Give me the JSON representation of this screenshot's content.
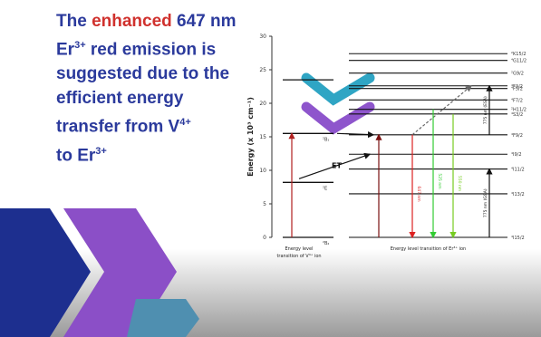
{
  "slide": {
    "headline": {
      "lines": [
        [
          {
            "text": "The "
          },
          {
            "text": "enhanced",
            "highlight": true
          },
          {
            "text": " 647 nm"
          }
        ],
        [
          {
            "text": "Er"
          },
          {
            "text": "3+",
            "sup": true
          },
          {
            "text": " red emission is"
          }
        ],
        [
          {
            "text": "suggested due to the"
          }
        ],
        [
          {
            "text": "efficient energy"
          }
        ],
        [
          {
            "text": "transfer from V"
          },
          {
            "text": "4+",
            "sup": true
          }
        ],
        [
          {
            "text": "to Er"
          },
          {
            "text": "3+",
            "sup": true
          }
        ]
      ]
    },
    "diagram": {
      "y_label": "Energy (x 10³ cm⁻¹)",
      "ylim": [
        0,
        30
      ],
      "yticks": [
        0,
        5,
        10,
        15,
        20,
        25,
        30
      ],
      "v_levels": [
        {
          "energy": 0,
          "label": "²B₂"
        },
        {
          "energy": 8.2,
          "label": "²E"
        },
        {
          "energy": 15.5,
          "label": "²B₁"
        },
        {
          "energy": 23.5
        }
      ],
      "er_levels": [
        {
          "energy": 0,
          "label": "⁴I15/2"
        },
        {
          "energy": 6.5,
          "label": "⁴I13/2"
        },
        {
          "energy": 10.2,
          "label": "⁴I11/2"
        },
        {
          "energy": 12.4,
          "label": "⁴I9/2"
        },
        {
          "energy": 15.3,
          "label": "⁴F9/2"
        },
        {
          "energy": 18.4,
          "label": "⁴S3/2"
        },
        {
          "energy": 19.1,
          "label": "²H11/2"
        },
        {
          "energy": 20.5,
          "label": "⁴F7/2"
        },
        {
          "energy": 22.2,
          "label": "⁴F5/2"
        },
        {
          "energy": 22.6,
          "label": "⁴F3/2"
        },
        {
          "energy": 24.5,
          "label": "²G9/2"
        },
        {
          "energy": 26.4,
          "label": "⁴G11/2"
        },
        {
          "energy": 27.4,
          "label": "²K15/2"
        }
      ],
      "et_label": "ET",
      "emissions": [
        "647 nm",
        "525 nm",
        "550 nm"
      ],
      "excitations": [
        "775 nm (GSA)",
        "775 nm (ESA)"
      ],
      "v_caption": [
        "Energy level",
        "transition of V⁴⁺ ion"
      ],
      "er_caption": "Energy level transition of Er³⁺ ion"
    }
  }
}
